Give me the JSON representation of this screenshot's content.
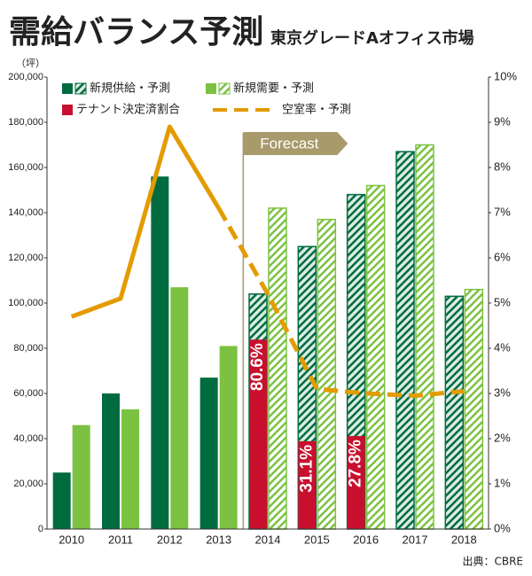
{
  "chart_data": {
    "type": "bar",
    "title": "需給バランス予測",
    "subtitle": "東京グレードAオフィス市場",
    "y_unit": "（坪）",
    "source": "出典：CBRE",
    "annotation": "Forecast",
    "forecast_start": "2014",
    "categories": [
      "2010",
      "2011",
      "2012",
      "2013",
      "2014",
      "2015",
      "2016",
      "2017",
      "2018"
    ],
    "ylim": [
      0,
      200000
    ],
    "yticks": [
      0,
      {
        "value": 20000,
        "label": "20,000"
      },
      {
        "value": 40000,
        "label": "40,000"
      },
      {
        "value": 60000,
        "label": "60,000"
      },
      {
        "value": 80000,
        "label": "80,000"
      },
      {
        "value": 100000,
        "label": "100,000"
      },
      {
        "value": 120000,
        "label": "120,000"
      },
      {
        "value": 140000,
        "label": "140,000"
      },
      {
        "value": 160000,
        "label": "160,000"
      },
      {
        "value": 180000,
        "label": "180,000"
      },
      {
        "value": 200000,
        "label": "200,000"
      }
    ],
    "y2lim": [
      0,
      10
    ],
    "y2ticks": [
      {
        "value": 0,
        "label": "0%"
      },
      {
        "value": 1,
        "label": "1%"
      },
      {
        "value": 2,
        "label": "2%"
      },
      {
        "value": 3,
        "label": "3%"
      },
      {
        "value": 4,
        "label": "4%"
      },
      {
        "value": 5,
        "label": "5%"
      },
      {
        "value": 6,
        "label": "6%"
      },
      {
        "value": 7,
        "label": "7%"
      },
      {
        "value": 8,
        "label": "8%"
      },
      {
        "value": 9,
        "label": "9%"
      },
      {
        "value": 10,
        "label": "10%"
      }
    ],
    "series": [
      {
        "name": "新規供給・予測",
        "color": "#006b3f",
        "values": [
          25000,
          60000,
          156000,
          67000,
          104000,
          125000,
          148000,
          167000,
          103000
        ]
      },
      {
        "name": "新規需要・予測",
        "color": "#7cc242",
        "values": [
          46000,
          53000,
          107000,
          81000,
          142000,
          137000,
          152000,
          170000,
          106000
        ]
      },
      {
        "name": "テナント決定済割合",
        "color": "#c8102e",
        "values": [
          null,
          null,
          null,
          null,
          80.6,
          31.1,
          27.8,
          null,
          null
        ],
        "value_labels": [
          null,
          null,
          null,
          null,
          "80.6%",
          "31.1%",
          "27.8%",
          null,
          null
        ]
      },
      {
        "name": "空室率・予測",
        "color": "#e39b00",
        "axis": "y2",
        "values": [
          4.7,
          5.1,
          8.9,
          7.1,
          5.2,
          3.1,
          3.0,
          2.95,
          3.05
        ]
      }
    ]
  }
}
